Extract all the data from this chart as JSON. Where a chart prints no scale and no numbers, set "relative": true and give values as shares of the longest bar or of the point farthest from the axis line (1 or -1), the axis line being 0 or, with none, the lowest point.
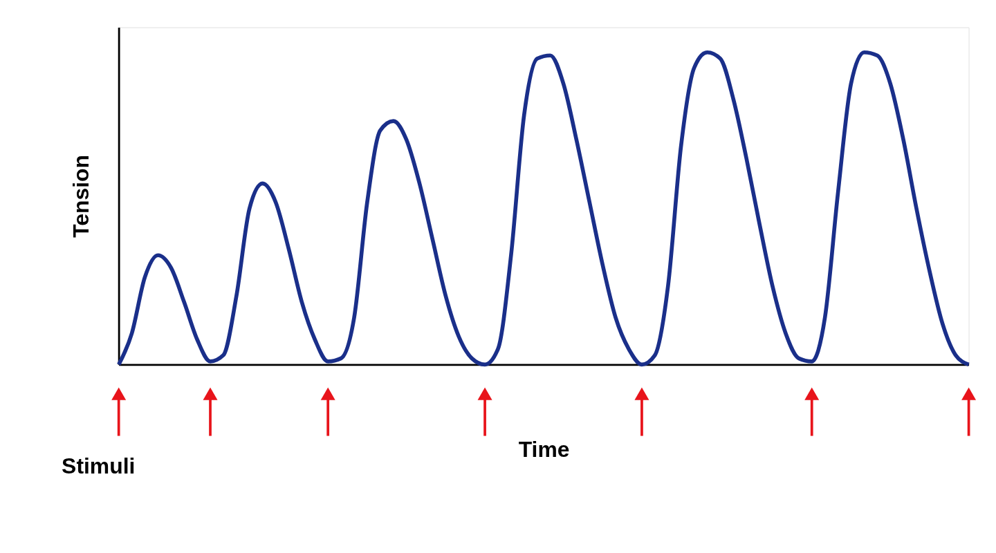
{
  "chart_data": {
    "type": "line",
    "relative": true,
    "tick_labels": false,
    "xlabel": "Time",
    "ylabel": "Tension",
    "annotations": [
      "Stimuli"
    ],
    "categories": [
      null,
      null,
      null,
      null,
      null,
      null,
      null,
      null,
      null,
      null,
      null,
      null,
      null,
      null,
      null,
      null,
      null,
      null,
      null,
      null,
      null,
      null,
      null,
      null,
      null,
      null,
      null,
      null,
      null,
      null,
      null,
      null,
      null,
      null,
      null,
      null,
      null,
      null,
      null,
      null,
      null,
      null,
      null,
      null,
      null,
      null,
      null,
      null,
      null,
      null,
      null,
      null,
      null,
      null,
      null,
      null,
      null,
      null,
      null,
      null,
      null,
      null,
      null,
      null,
      null,
      null
    ],
    "series": [
      {
        "color": "#1a2f8a",
        "values": [
          0,
          0.1,
          0.28,
          0.35,
          0.31,
          0.2,
          0.08,
          0.01,
          0.03,
          0.22,
          0.5,
          0.58,
          0.52,
          0.37,
          0.2,
          0.08,
          0.01,
          0.02,
          0.15,
          0.52,
          0.75,
          0.78,
          0.72,
          0.58,
          0.4,
          0.22,
          0.09,
          0.02,
          0,
          0.05,
          0.35,
          0.8,
          0.98,
          0.99,
          0.9,
          0.72,
          0.52,
          0.32,
          0.15,
          0.05,
          0,
          0.03,
          0.25,
          0.7,
          0.95,
          1,
          0.98,
          0.85,
          0.66,
          0.45,
          0.25,
          0.1,
          0.02,
          0.01,
          0.15,
          0.55,
          0.9,
          1,
          0.99,
          0.9,
          0.72,
          0.5,
          0.3,
          0.13,
          0.03,
          0
        ]
      }
    ]
  }
}
